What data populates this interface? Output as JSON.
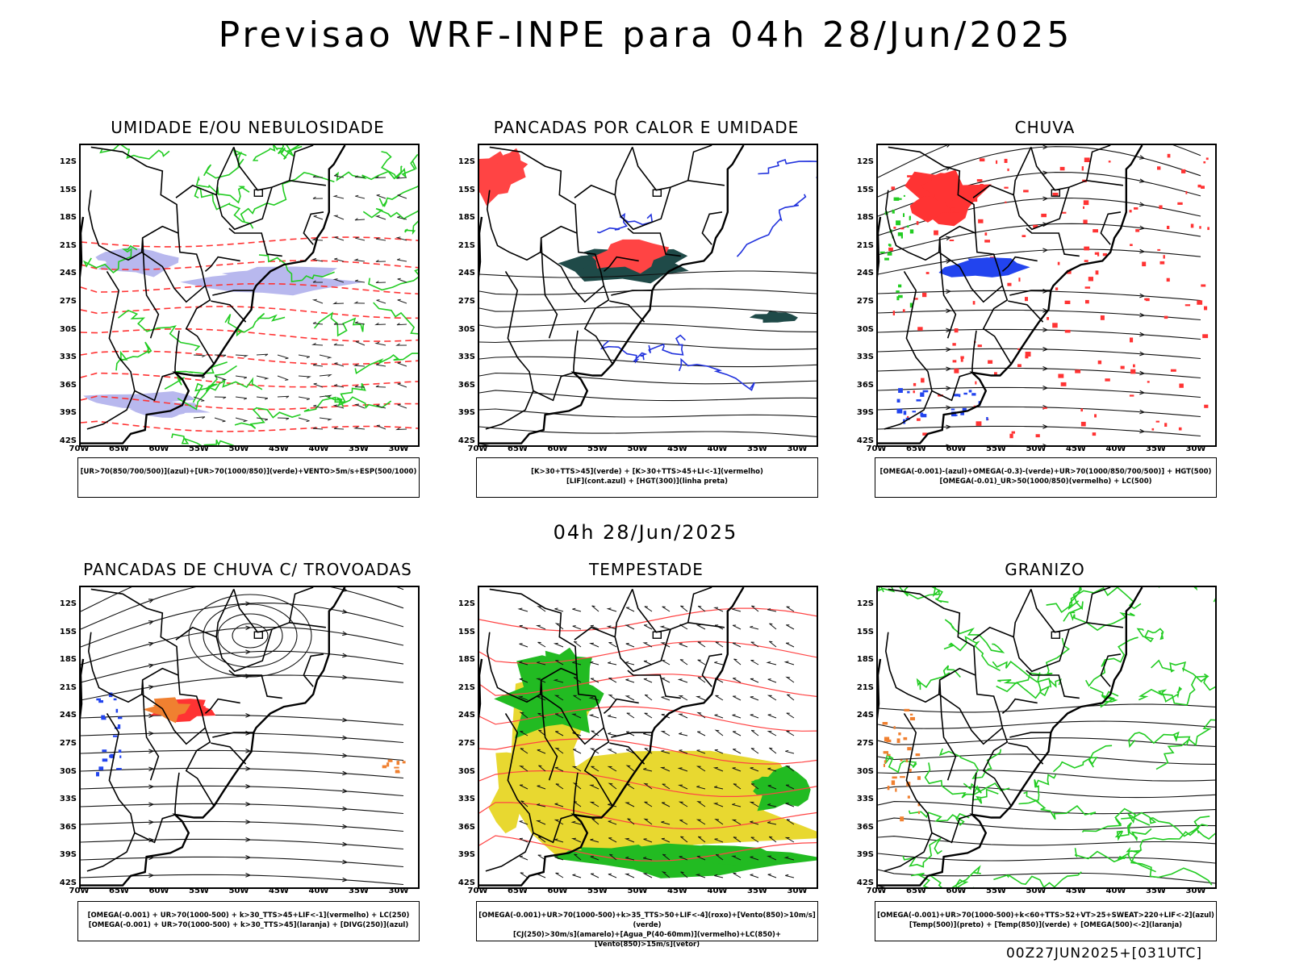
{
  "title": "Previsao WRF-INPE  para 04h 28/Jun/2025",
  "mid_title": "04h 28/Jun/2025",
  "footer": "00Z27JUN2025+[031UTC]",
  "lat_labels": [
    "12S",
    "15S",
    "18S",
    "21S",
    "24S",
    "27S",
    "30S",
    "33S",
    "36S",
    "39S",
    "42S"
  ],
  "lon_labels": [
    "70W",
    "65W",
    "60W",
    "55W",
    "50W",
    "45W",
    "40W",
    "35W",
    "30W"
  ],
  "panels": [
    {
      "title": "UMIDADE E/OU NEBULOSIDADE",
      "legend_line1": "[UR>70(850/700/500)](azul)+[UR>70(1000/850)](verde)+VENTO>5m/s+ESP(500/1000)",
      "legend_line2": "",
      "colors": {
        "fill1": "#b8b8ee",
        "contour1": "#22cc22",
        "contour2": "#ff3333"
      }
    },
    {
      "title": "PANCADAS POR CALOR E UMIDADE",
      "legend_line1": "[K>30+TTS>45](verde) + [K>30+TTS>45+LI<-1](vermelho)",
      "legend_line2": "[LIF](cont.azul) + [HGT(300)](linha preta)",
      "colors": {
        "fill1": "#1f4a48",
        "fill2": "#ff4444",
        "contour1": "#2233dd"
      }
    },
    {
      "title": "CHUVA",
      "legend_line1": "[OMEGA(-0.001)-(azul)+OMEGA(-0.3)-(verde)+UR>70(1000/850/700/500)] + HGT(500)",
      "legend_line2": "[OMEGA(-0.01)_UR>50(1000/850)(vermelho) + LC(500)",
      "colors": {
        "fill1": "#ff3333",
        "fill2": "#2244ee",
        "fill3": "#22cc22"
      }
    },
    {
      "title": "PANCADAS DE CHUVA C/ TROVOADAS",
      "legend_line1": "[OMEGA(-0.001) + UR>70(1000-500) + k>30_TTS>45+LIF<-1](vermelho) + LC(250)",
      "legend_line2": "[OMEGA(-0.001) + UR>70(1000-500) + k>30_TTS>45](laranja) + [DIVG(250)](azul)",
      "colors": {
        "fill1": "#ff3333",
        "fill2": "#f08030",
        "fill3": "#2244ee"
      }
    },
    {
      "title": "TEMPESTADE",
      "legend_line1": "[OMEGA(-0.001)+UR>70(1000-500)+k>35_TTS>50+LIF<-4](roxo)+[Vento(850)>10m/s](verde)",
      "legend_line2": "[CJ(250)>30m/s](amarelo)+[Agua_P(40-60mm)](vermelho)+LC(850)+[Vento(850)>15m/s](vetor)",
      "colors": {
        "fill1": "#e8d830",
        "fill2": "#22bb22",
        "contour1": "#ff4444"
      }
    },
    {
      "title": "GRANIZO",
      "legend_line1": "[OMEGA(-0.001)+UR>70(1000-500)+k<60+TTS>52+VT>25+SWEAT>220+LIF<-2](azul)",
      "legend_line2": "[Temp(500)](preto) + [Temp(850)](verde) + [OMEGA(500)<-2](laranja)",
      "colors": {
        "contour1": "#22cc22",
        "fill1": "#f08030"
      }
    }
  ]
}
